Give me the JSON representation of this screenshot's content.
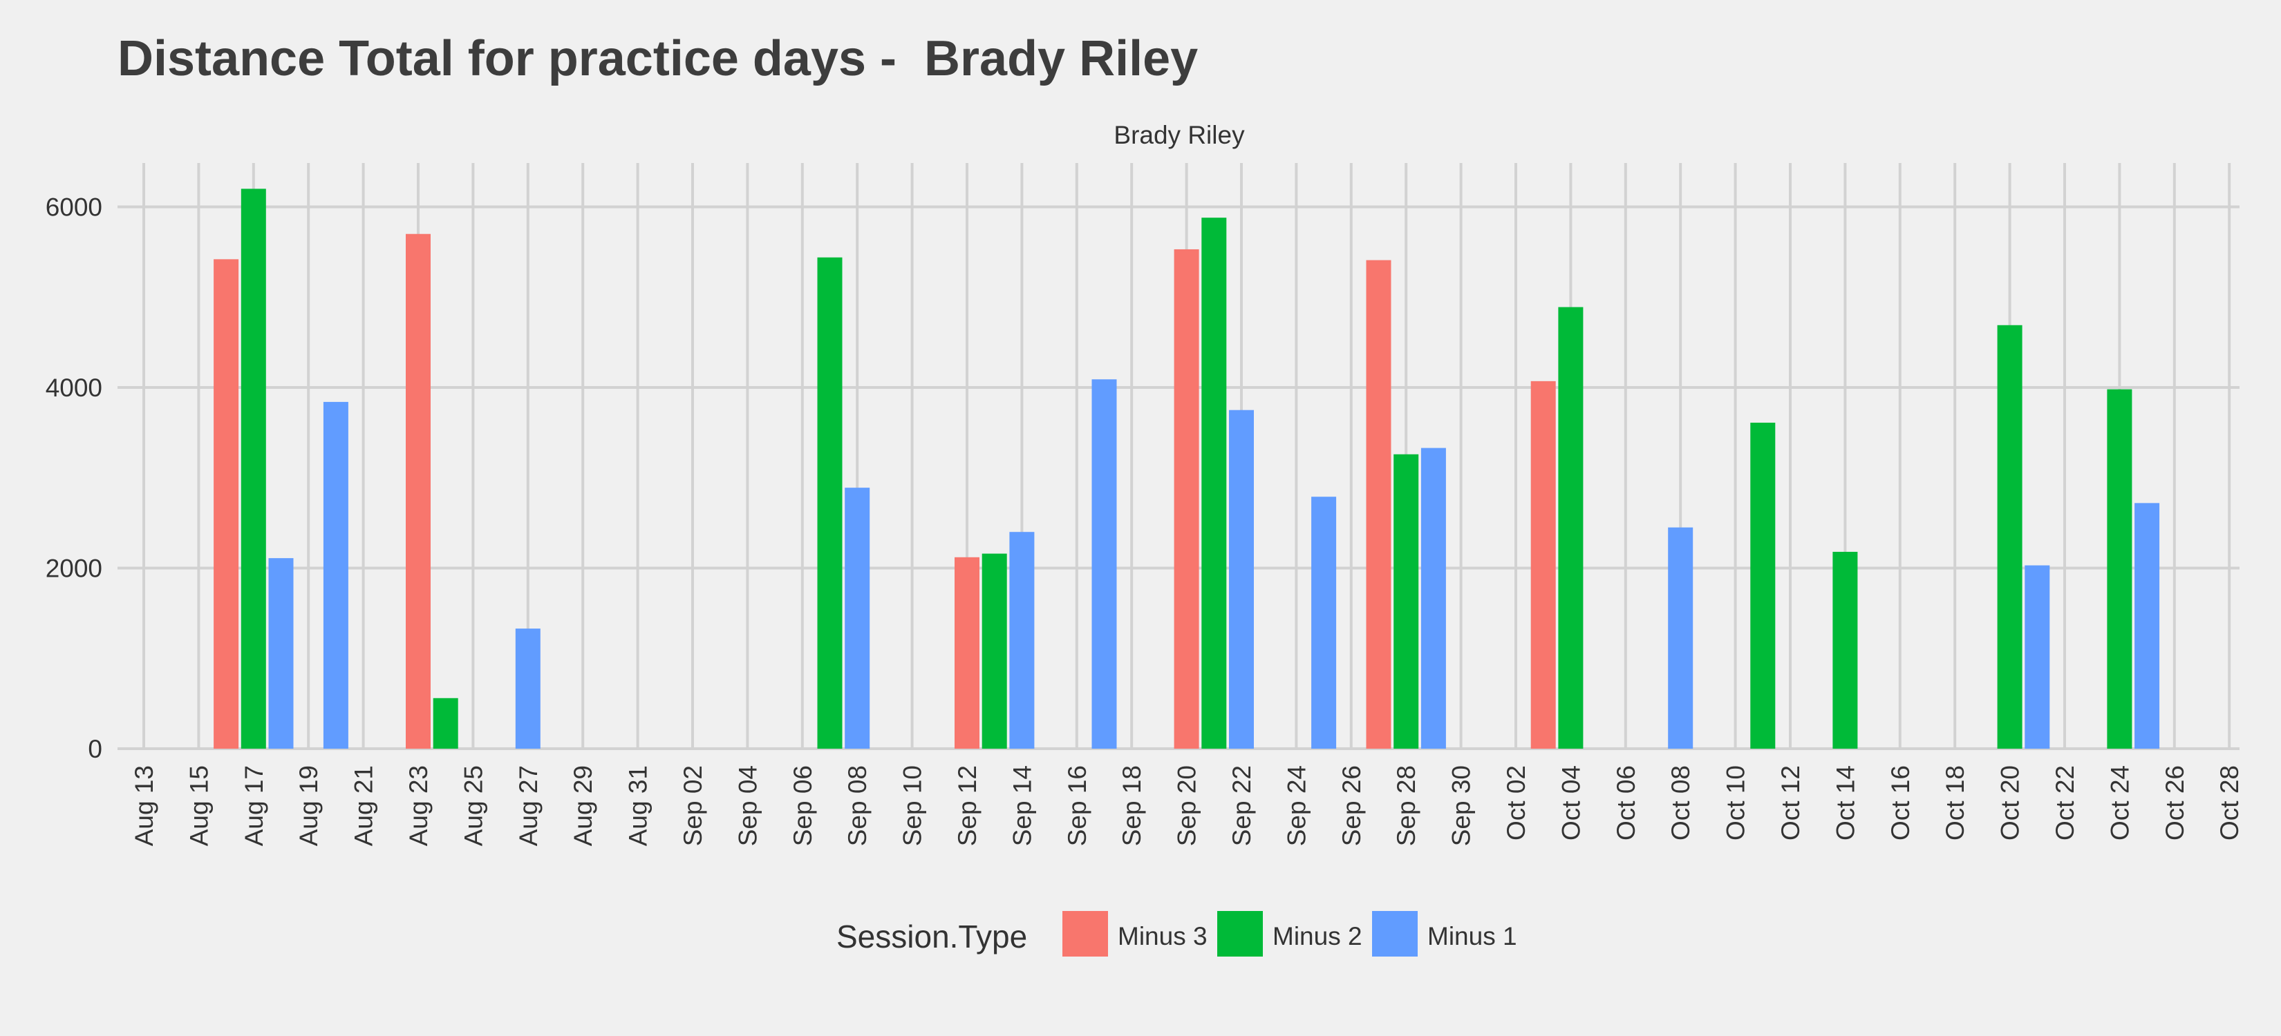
{
  "chart_data": {
    "type": "bar",
    "title": "Distance Total for practice days -  Brady Riley",
    "facet_label": "Brady Riley",
    "xlabel": "",
    "ylabel": "",
    "x_ticks": [
      "Aug 13",
      "Aug 15",
      "Aug 17",
      "Aug 19",
      "Aug 21",
      "Aug 23",
      "Aug 25",
      "Aug 27",
      "Aug 29",
      "Aug 31",
      "Sep 02",
      "Sep 04",
      "Sep 06",
      "Sep 08",
      "Sep 10",
      "Sep 12",
      "Sep 14",
      "Sep 16",
      "Sep 18",
      "Sep 20",
      "Sep 22",
      "Sep 24",
      "Sep 26",
      "Sep 28",
      "Sep 30",
      "Oct 02",
      "Oct 04",
      "Oct 06",
      "Oct 08",
      "Oct 10",
      "Oct 12",
      "Oct 14",
      "Oct 16",
      "Oct 18",
      "Oct 20",
      "Oct 22",
      "Oct 24",
      "Oct 26",
      "Oct 28"
    ],
    "y_ticks": [
      0,
      2000,
      4000,
      6000
    ],
    "ylim": [
      0,
      6500
    ],
    "grid": true,
    "legend": {
      "title": "Session.Type",
      "placement": "bottom",
      "entries": [
        "Minus 3",
        "Minus 2",
        "Minus 1"
      ]
    },
    "series": [
      {
        "name": "Minus 3",
        "color": "#f8766d",
        "points": [
          {
            "x": "Aug 16",
            "y": 5420
          },
          {
            "x": "Aug 23",
            "y": 5700
          },
          {
            "x": "Sep 12",
            "y": 2120
          },
          {
            "x": "Sep 20",
            "y": 5530
          },
          {
            "x": "Sep 27",
            "y": 5410
          },
          {
            "x": "Oct 03",
            "y": 4070
          }
        ]
      },
      {
        "name": "Minus 2",
        "color": "#00ba38",
        "points": [
          {
            "x": "Aug 17",
            "y": 6200
          },
          {
            "x": "Aug 24",
            "y": 560
          },
          {
            "x": "Sep 07",
            "y": 5440
          },
          {
            "x": "Sep 13",
            "y": 2160
          },
          {
            "x": "Sep 21",
            "y": 5880
          },
          {
            "x": "Sep 28",
            "y": 3260
          },
          {
            "x": "Oct 04",
            "y": 4890
          },
          {
            "x": "Oct 11",
            "y": 3610
          },
          {
            "x": "Oct 14",
            "y": 2180
          },
          {
            "x": "Oct 20",
            "y": 4690
          },
          {
            "x": "Oct 24",
            "y": 3980
          }
        ]
      },
      {
        "name": "Minus 1",
        "color": "#619cff",
        "points": [
          {
            "x": "Aug 18",
            "y": 2110
          },
          {
            "x": "Aug 20",
            "y": 3840
          },
          {
            "x": "Aug 27",
            "y": 1330
          },
          {
            "x": "Sep 08",
            "y": 2890
          },
          {
            "x": "Sep 14",
            "y": 2400
          },
          {
            "x": "Sep 17",
            "y": 4090
          },
          {
            "x": "Sep 22",
            "y": 3750
          },
          {
            "x": "Sep 25",
            "y": 2790
          },
          {
            "x": "Sep 29",
            "y": 3330
          },
          {
            "x": "Oct 08",
            "y": 2450
          },
          {
            "x": "Oct 21",
            "y": 2030
          },
          {
            "x": "Oct 25",
            "y": 2720
          }
        ]
      }
    ]
  }
}
